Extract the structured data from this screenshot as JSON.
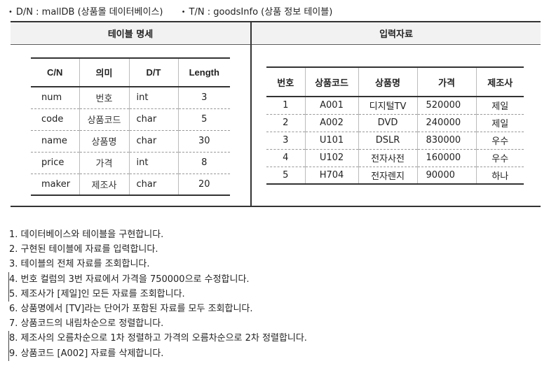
{
  "header": {
    "bullet": "•",
    "dn": "D/N : mallDB  (상품몰 데이터베이스)",
    "tn": "T/N : goodsInfo (상품 정보 테이블)"
  },
  "sections": {
    "left_title": "테이블 명세",
    "right_title": "입력자료"
  },
  "spec_table": {
    "headers": [
      "C/N",
      "의미",
      "D/T",
      "Length"
    ],
    "rows": [
      [
        "num",
        "번호",
        "int",
        "3"
      ],
      [
        "code",
        "상품코드",
        "char",
        "5"
      ],
      [
        "name",
        "상품명",
        "char",
        "30"
      ],
      [
        "price",
        "가격",
        "int",
        "8"
      ],
      [
        "maker",
        "제조사",
        "char",
        "20"
      ]
    ]
  },
  "data_table": {
    "headers": [
      "번호",
      "상품코드",
      "상품명",
      "가격",
      "제조사"
    ],
    "rows": [
      [
        "1",
        "A001",
        "디지털TV",
        "520000",
        "제일"
      ],
      [
        "2",
        "A002",
        "DVD",
        "240000",
        "제일"
      ],
      [
        "3",
        "U101",
        "DSLR",
        "830000",
        "우수"
      ],
      [
        "4",
        "U102",
        "전자사전",
        "160000",
        "우수"
      ],
      [
        "5",
        "H704",
        "전자렌지",
        "90000",
        "하나"
      ]
    ]
  },
  "tasks": [
    "1. 데이터베이스와 테이블을 구현합니다.",
    "2. 구현된 테이블에 자료를 입력합니다.",
    "3. 테이블의 전체 자료를 조회합니다.",
    "4. 번호 컬럼의 3번 자료에서 가격을 750000으로 수정합니다.",
    "5. 제조사가 [제일]인 모든 자료를 조회합니다.",
    "6. 상품명에서 [TV]라는 단어가 포함된 자료를 모두 조회합니다.",
    "7. 상품코드의 내림차순으로 정렬합니다.",
    "8. 제조사의 오름차순으로 1차 정렬하고 가격의 오름차순으로 2차 정렬합니다.",
    "9. 상품코드 [A002] 자료를 삭제합니다."
  ]
}
